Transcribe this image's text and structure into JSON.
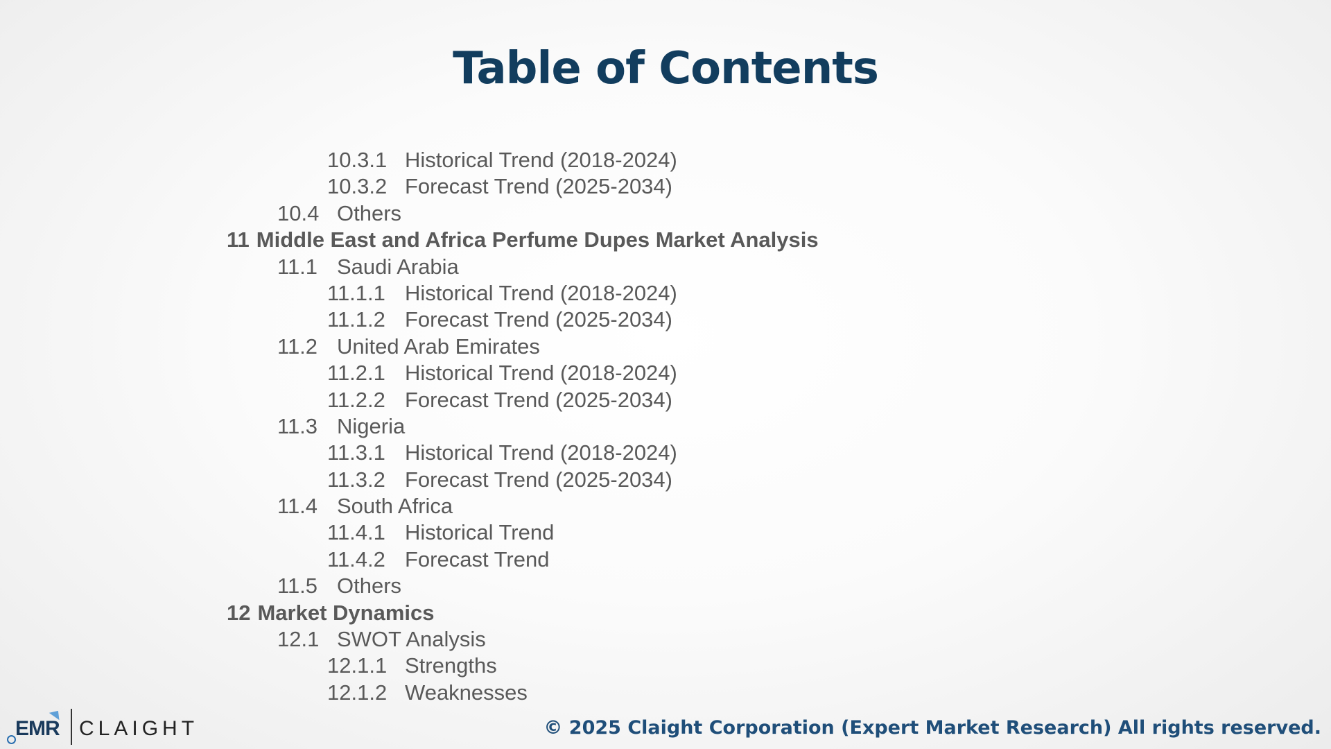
{
  "title": "Table of Contents",
  "toc": [
    {
      "level": 3,
      "num": "10.3.1",
      "text": "Historical Trend (2018-2024)"
    },
    {
      "level": 3,
      "num": "10.3.2",
      "text": "Forecast Trend (2025-2034)"
    },
    {
      "level": 2,
      "num": "10.4",
      "text": "Others"
    },
    {
      "level": 1,
      "num": "11",
      "text": "Middle East and Africa Perfume Dupes Market Analysis"
    },
    {
      "level": 2,
      "num": "11.1",
      "text": "Saudi Arabia"
    },
    {
      "level": 3,
      "num": "11.1.1",
      "text": "Historical Trend (2018-2024)"
    },
    {
      "level": 3,
      "num": "11.1.2",
      "text": "Forecast Trend (2025-2034)"
    },
    {
      "level": 2,
      "num": "11.2",
      "text": "United Arab Emirates"
    },
    {
      "level": 3,
      "num": "11.2.1",
      "text": "Historical Trend (2018-2024)"
    },
    {
      "level": 3,
      "num": "11.2.2",
      "text": "Forecast Trend (2025-2034)"
    },
    {
      "level": 2,
      "num": "11.3",
      "text": "Nigeria"
    },
    {
      "level": 3,
      "num": "11.3.1",
      "text": "Historical Trend (2018-2024)"
    },
    {
      "level": 3,
      "num": "11.3.2",
      "text": "Forecast Trend (2025-2034)"
    },
    {
      "level": 2,
      "num": "11.4",
      "text": "South Africa"
    },
    {
      "level": 3,
      "num": "11.4.1",
      "text": "Historical Trend"
    },
    {
      "level": 3,
      "num": "11.4.2",
      "text": "Forecast Trend"
    },
    {
      "level": 2,
      "num": "11.5",
      "text": "Others"
    },
    {
      "level": 1,
      "num": "12",
      "text": "Market Dynamics"
    },
    {
      "level": 2,
      "num": "12.1",
      "text": "SWOT Analysis"
    },
    {
      "level": 3,
      "num": "12.1.1",
      "text": "Strengths"
    },
    {
      "level": 3,
      "num": "12.1.2",
      "text": "Weaknesses"
    }
  ],
  "footer": {
    "logo_emr": "EMR",
    "logo_claight": "CLAIGHT",
    "copyright": "© 2025 Claight Corporation (Expert Market Research) All rights reserved."
  },
  "colors": {
    "title": "#123d5e",
    "body_text": "#595959",
    "copyright": "#1f4e79"
  }
}
